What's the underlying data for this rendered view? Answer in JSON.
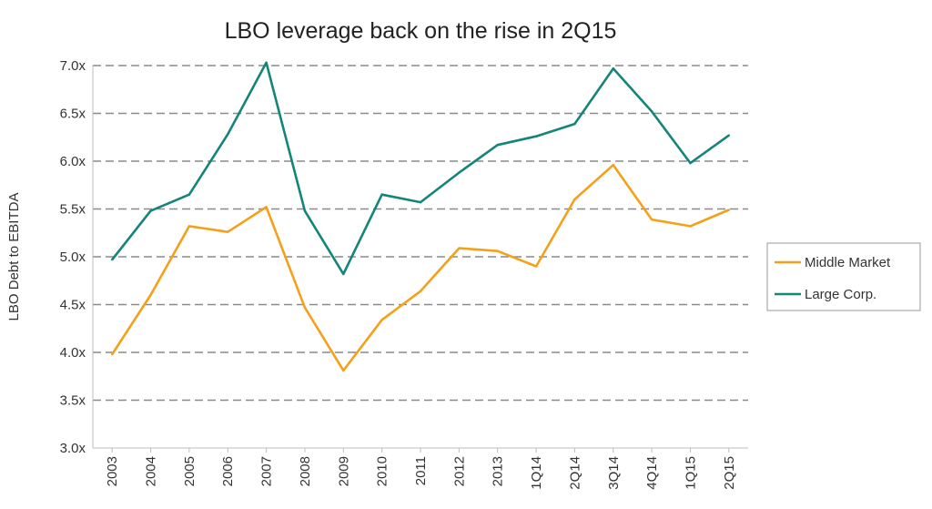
{
  "chart_data": {
    "type": "line",
    "title": "LBO leverage back on the rise in 2Q15",
    "xlabel": "",
    "ylabel": "LBO Debt to EBITDA",
    "ylim": [
      3.0,
      7.0
    ],
    "y_ticks": [
      "3.0x",
      "3.5x",
      "4.0x",
      "4.5x",
      "5.0x",
      "5.5x",
      "6.0x",
      "6.5x",
      "7.0x"
    ],
    "grid": "horizontal dashed",
    "legend_position": "right",
    "categories": [
      "2003",
      "2004",
      "2005",
      "2006",
      "2007",
      "2008",
      "2009",
      "2010",
      "2011",
      "2012",
      "2013",
      "1Q14",
      "2Q14",
      "3Q14",
      "4Q14",
      "1Q15",
      "2Q15"
    ],
    "series": [
      {
        "name": "Middle Market",
        "color": "#f5a01a",
        "values": [
          3.98,
          4.6,
          5.32,
          5.26,
          5.52,
          4.47,
          3.81,
          4.34,
          4.64,
          5.09,
          5.06,
          4.9,
          5.6,
          5.96,
          5.39,
          5.32,
          5.49
        ]
      },
      {
        "name": "Large Corp.",
        "color": "#138579",
        "values": [
          4.97,
          5.48,
          5.65,
          6.28,
          7.03,
          5.48,
          4.82,
          5.65,
          5.57,
          5.88,
          6.17,
          6.26,
          6.39,
          6.97,
          6.52,
          5.98,
          6.27
        ]
      }
    ]
  }
}
